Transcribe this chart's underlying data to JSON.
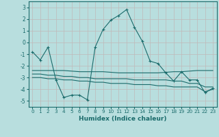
{
  "xlabel": "Humidex (Indice chaleur)",
  "bg_color": "#b8dede",
  "grid_color": "#c0b8b8",
  "line_color": "#1a6b6b",
  "ylim": [
    -5.5,
    3.5
  ],
  "xlim": [
    -0.5,
    23.5
  ],
  "yticks": [
    -5,
    -4,
    -3,
    -2,
    -1,
    0,
    1,
    2,
    3
  ],
  "xticks": [
    0,
    1,
    2,
    3,
    4,
    5,
    6,
    7,
    8,
    9,
    10,
    11,
    12,
    13,
    14,
    15,
    16,
    17,
    18,
    19,
    20,
    21,
    22,
    23
  ],
  "series": [
    {
      "x": [
        0,
        1,
        2,
        3,
        4,
        5,
        6,
        7,
        8,
        9,
        10,
        11,
        12,
        13,
        14,
        15,
        16,
        17,
        18,
        19,
        20,
        21,
        22,
        23
      ],
      "y": [
        -0.8,
        -1.5,
        -0.4,
        -3.2,
        -4.7,
        -4.5,
        -4.5,
        -4.9,
        -0.4,
        1.1,
        1.9,
        2.3,
        2.8,
        1.3,
        0.1,
        -1.6,
        -1.8,
        -2.6,
        -3.3,
        -2.5,
        -3.2,
        -3.2,
        -4.3,
        -3.9
      ],
      "marker": true
    },
    {
      "x": [
        0,
        1,
        2,
        3,
        4,
        5,
        6,
        7,
        8,
        9,
        10,
        11,
        12,
        13,
        14,
        15,
        16,
        17,
        18,
        19,
        20,
        21,
        22,
        23
      ],
      "y": [
        -2.4,
        -2.4,
        -2.4,
        -2.4,
        -2.4,
        -2.45,
        -2.5,
        -2.5,
        -2.5,
        -2.5,
        -2.55,
        -2.6,
        -2.6,
        -2.6,
        -2.6,
        -2.6,
        -2.6,
        -2.55,
        -2.5,
        -2.5,
        -2.45,
        -2.4,
        -2.4,
        -2.4
      ],
      "marker": false
    },
    {
      "x": [
        0,
        1,
        2,
        3,
        4,
        5,
        6,
        7,
        8,
        9,
        10,
        11,
        12,
        13,
        14,
        15,
        16,
        17,
        18,
        19,
        20,
        21,
        22,
        23
      ],
      "y": [
        -2.7,
        -2.7,
        -2.8,
        -2.8,
        -2.9,
        -2.9,
        -3.0,
        -3.0,
        -3.1,
        -3.1,
        -3.1,
        -3.1,
        -3.1,
        -3.2,
        -3.2,
        -3.2,
        -3.2,
        -3.2,
        -3.3,
        -3.3,
        -3.5,
        -3.5,
        -3.8,
        -3.8
      ],
      "marker": false
    },
    {
      "x": [
        0,
        1,
        2,
        3,
        4,
        5,
        6,
        7,
        8,
        9,
        10,
        11,
        12,
        13,
        14,
        15,
        16,
        17,
        18,
        19,
        20,
        21,
        22,
        23
      ],
      "y": [
        -3.0,
        -3.0,
        -3.1,
        -3.1,
        -3.2,
        -3.2,
        -3.3,
        -3.3,
        -3.4,
        -3.4,
        -3.5,
        -3.5,
        -3.5,
        -3.6,
        -3.6,
        -3.6,
        -3.7,
        -3.7,
        -3.8,
        -3.8,
        -3.8,
        -3.8,
        -4.2,
        -4.0
      ],
      "marker": false
    }
  ]
}
